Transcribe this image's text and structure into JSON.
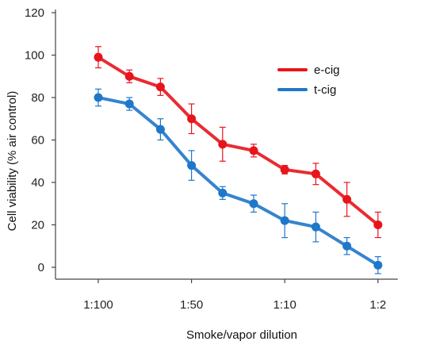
{
  "chart_data": {
    "type": "line",
    "xlabel": "Smoke/vapor dilution",
    "ylabel": "Cell viability (% air control)",
    "ylim": [
      0,
      120
    ],
    "yticks": [
      0,
      20,
      40,
      60,
      80,
      100,
      120
    ],
    "xtick_labels": [
      "1:100",
      "1:50",
      "1:10",
      "1:2"
    ],
    "xtick_positions": [
      0,
      3,
      6,
      9
    ],
    "x": [
      0,
      1,
      2,
      3,
      4,
      5,
      6,
      7,
      8,
      9
    ],
    "legend_position": "top-right",
    "grid": false,
    "series": [
      {
        "name": "e-cig",
        "color": "#e8141b",
        "values": [
          99,
          90,
          85,
          70,
          58,
          55,
          46,
          44,
          32,
          20
        ],
        "errors": [
          5,
          3,
          4,
          7,
          8,
          3,
          2,
          5,
          8,
          6
        ]
      },
      {
        "name": "t-cig",
        "color": "#1f77c9",
        "values": [
          80,
          77,
          65,
          48,
          35,
          30,
          22,
          19,
          10,
          1
        ],
        "errors": [
          4,
          3,
          5,
          7,
          3,
          4,
          8,
          7,
          4,
          4
        ]
      }
    ]
  }
}
